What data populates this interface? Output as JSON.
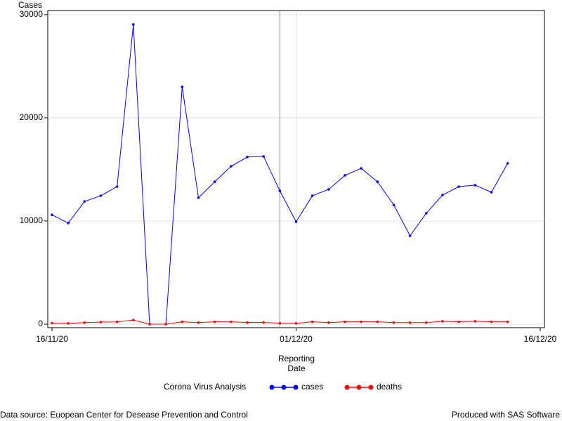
{
  "chart_data": {
    "type": "line",
    "y_label": "Cases",
    "x_label": "Reporting Date",
    "legend_title": "Corona Virus Analysis",
    "footnote_left": "Data source: Euopean Center for Desease Prevention and Control",
    "footnote_right": "Produced with SAS Software",
    "x": [
      "2020-11-16",
      "2020-11-17",
      "2020-11-18",
      "2020-11-19",
      "2020-11-20",
      "2020-11-21",
      "2020-11-22",
      "2020-11-23",
      "2020-11-24",
      "2020-11-25",
      "2020-11-26",
      "2020-11-27",
      "2020-11-28",
      "2020-11-29",
      "2020-11-30",
      "2020-12-01",
      "2020-12-02",
      "2020-12-03",
      "2020-12-04",
      "2020-12-05",
      "2020-12-06",
      "2020-12-07",
      "2020-12-08",
      "2020-12-09",
      "2020-12-10",
      "2020-12-11",
      "2020-12-12",
      "2020-12-13",
      "2020-12-14"
    ],
    "series": [
      {
        "name": "cases",
        "color": "#0000ff",
        "values": [
          10600,
          9800,
          11900,
          12450,
          13330,
          29050,
          0,
          0,
          23000,
          12250,
          13800,
          15300,
          16200,
          16260,
          12930,
          9930,
          12450,
          13060,
          14420,
          15100,
          13800,
          11560,
          8570,
          10750,
          12520,
          13330,
          13470,
          12790,
          15580
        ]
      },
      {
        "name": "deaths",
        "color": "#ff0000",
        "values": [
          100,
          80,
          150,
          200,
          220,
          400,
          0,
          0,
          230,
          150,
          230,
          230,
          160,
          170,
          90,
          80,
          230,
          150,
          230,
          230,
          230,
          150,
          150,
          150,
          280,
          230,
          280,
          230,
          230
        ]
      }
    ],
    "xlim": [
      "2020-11-16",
      "2020-12-16"
    ],
    "xticks": [
      {
        "value": "2020-11-16",
        "label": "16/11/20"
      },
      {
        "value": "2020-12-01",
        "label": "01/12/20"
      },
      {
        "value": "2020-12-16",
        "label": "16/12/20"
      }
    ],
    "ylim": [
      -340,
      30400
    ],
    "yticks": [
      0,
      10000,
      20000,
      30000
    ],
    "grid": true,
    "reference_line_x": "2020-11-30",
    "legend_position": "bottom"
  }
}
